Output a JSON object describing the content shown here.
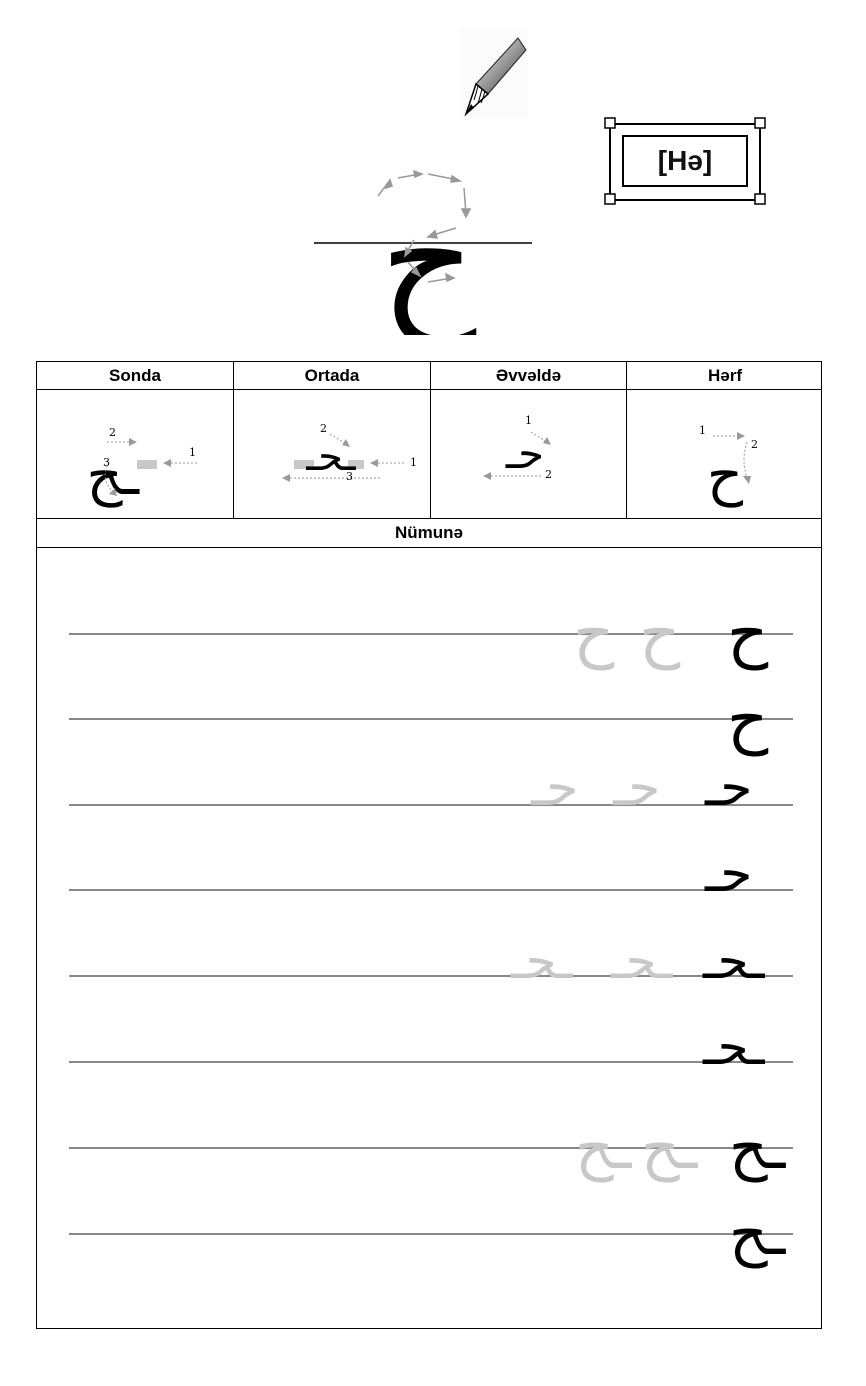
{
  "letter": {
    "transliteration": "[Hə]",
    "glyph_isolated": "ح",
    "glyph_final": "ـح",
    "glyph_medial": "ـحـ",
    "glyph_initial": "حـ"
  },
  "table": {
    "headers": [
      "Sonda",
      "Ortada",
      "Əvvəldə",
      "Hərf"
    ],
    "example_title": "Nümunə"
  },
  "stroke_numbers": {
    "final": [
      "2",
      "1",
      "3"
    ],
    "medial": [
      "2",
      "1",
      "3"
    ],
    "initial": [
      "1",
      "2"
    ],
    "isolated": [
      "1",
      "2"
    ]
  },
  "colors": {
    "ink": "#000000",
    "trace": "#c8c8c8",
    "guide_line": "#888888",
    "arrow": "#999999"
  }
}
